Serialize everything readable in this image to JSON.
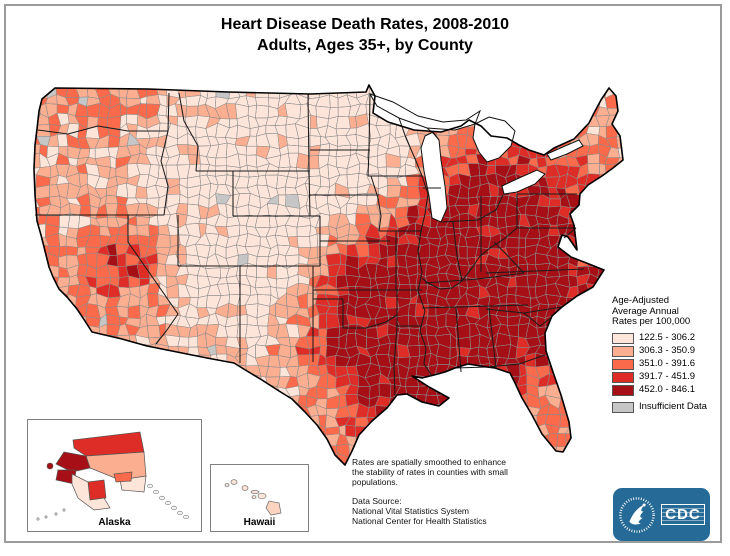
{
  "title": {
    "line1": "Heart Disease Death Rates, 2008-2010",
    "line2": "Adults, Ages 35+, by County"
  },
  "legend": {
    "title_lines": [
      "Age-Adjusted",
      "Average Annual",
      "Rates per 100,000"
    ],
    "classes": [
      {
        "label": "122.5 - 306.2",
        "color": "#fee5d9"
      },
      {
        "label": "306.3 - 350.9",
        "color": "#fcae91"
      },
      {
        "label": "351.0 - 391.6",
        "color": "#fb6a4a"
      },
      {
        "label": "391.7 - 451.9",
        "color": "#de2d26"
      },
      {
        "label": "452.0 - 846.1",
        "color": "#a50f15"
      }
    ],
    "insufficient": {
      "label": "Insufficient Data",
      "color": "#c6c6c6"
    }
  },
  "insets": {
    "alaska_label": "Alaska",
    "hawaii_label": "Hawaii"
  },
  "notes": {
    "smoothing_lines": [
      "Rates are spatially smoothed to enhance",
      "the stability of rates in counties with small",
      "populations."
    ],
    "source_heading": "Data Source:",
    "source_lines": [
      "National Vital Statistics System",
      "National Center for Health Statistics"
    ]
  },
  "logo": {
    "text": "CDC",
    "bg_color": "#266a97"
  },
  "map": {
    "water_color": "#ffffff",
    "county_line_color": "#8c8c8c",
    "state_line_color": "#1b1b1b",
    "outline_color": "#000000"
  },
  "chart_data": {
    "type": "heatmap",
    "subtype": "choropleth-map",
    "title": "Heart Disease Death Rates, 2008-2010 — Adults, Ages 35+, by County",
    "unit": "Age-Adjusted Average Annual Rates per 100,000",
    "classes": [
      {
        "range": [
          122.5,
          306.2
        ],
        "color": "#fee5d9"
      },
      {
        "range": [
          306.3,
          350.9
        ],
        "color": "#fcae91"
      },
      {
        "range": [
          351.0,
          391.6
        ],
        "color": "#fb6a4a"
      },
      {
        "range": [
          391.7,
          451.9
        ],
        "color": "#de2d26"
      },
      {
        "range": [
          452.0,
          846.1
        ],
        "color": "#a50f15"
      }
    ],
    "no_data": {
      "label": "Insufficient Data",
      "color": "#c6c6c6"
    },
    "regions": [
      "contiguous United States by county",
      "Alaska",
      "Hawaii"
    ],
    "legend_position": "right",
    "pattern_notes": "Highest rates concentrated in the Deep South, Oklahoma/Arkansas, Louisiana, Appalachia (KY/WV) and Nevada; lowest rates in the Mountain West, Upper Midwest, Northern Plains, central Texas and New England"
  }
}
